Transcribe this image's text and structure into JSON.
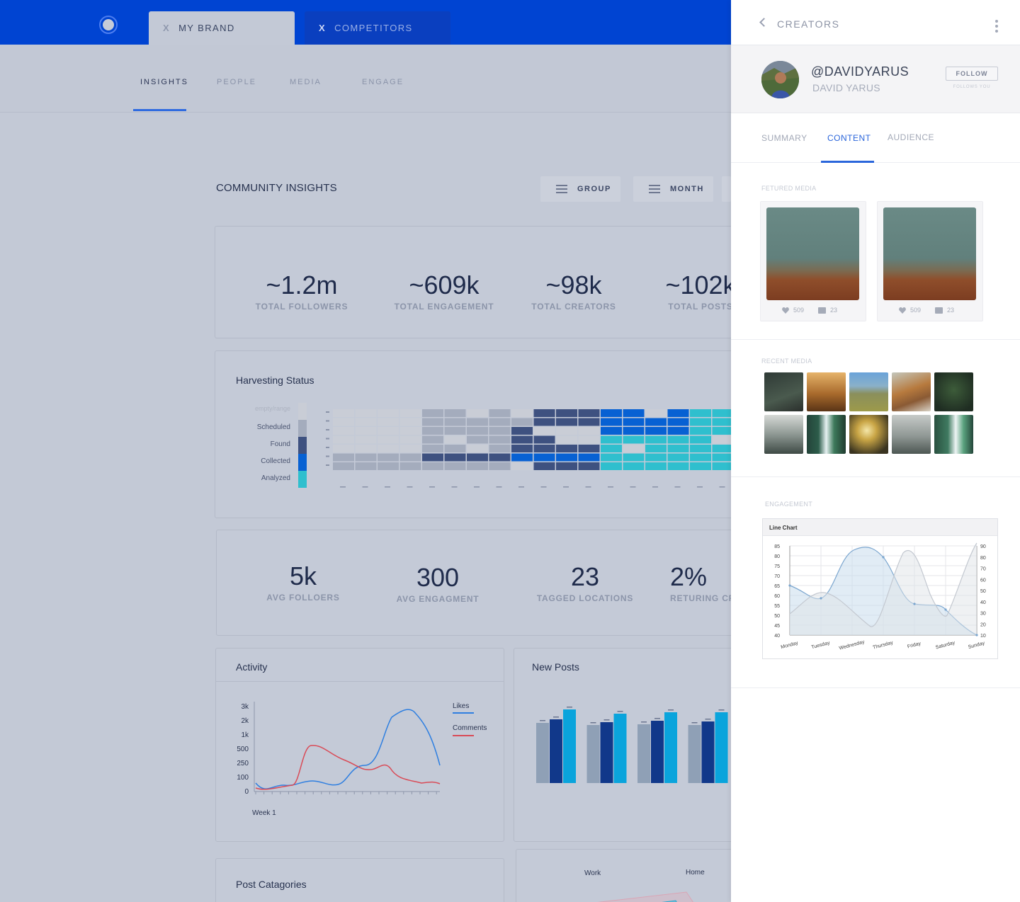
{
  "topbar": {
    "tabs": [
      {
        "label": "MY BRAND",
        "close": "X"
      },
      {
        "label": "COMPETITORS",
        "close": "X"
      }
    ]
  },
  "subnav": [
    "INSIGHTS",
    "PEOPLE",
    "MEDIA",
    "ENGAGE"
  ],
  "community": {
    "title": "COMMUNITY INSIGHTS",
    "filters": [
      "GROUP",
      "MONTH"
    ]
  },
  "totals": [
    {
      "value": "~1.2m",
      "label": "TOTAL FOLLOWERS"
    },
    {
      "value": "~609k",
      "label": "TOTAL ENGAGEMENT"
    },
    {
      "value": "~98k",
      "label": "TOTAL CREATORS"
    },
    {
      "value": "~102k",
      "label": "TOTAL POSTS"
    }
  ],
  "harvesting": {
    "title": "Harvesting Status",
    "legend": [
      "empty/range",
      "Scheduled",
      "Found",
      "Collected",
      "Analyzed"
    ],
    "colors": [
      "#c9cdd6",
      "#a4acbd",
      "#3e5180",
      "#0761d3",
      "#2fbfce"
    ]
  },
  "averages": [
    {
      "value": "5k",
      "label": "AVG FOLLOERS"
    },
    {
      "value": "300",
      "label": "AVG ENGAGMENT"
    },
    {
      "value": "23",
      "label": "TAGGED LOCATIONS"
    },
    {
      "value": "2%",
      "label": "RETURING CREATORS"
    }
  ],
  "activity": {
    "title": "Activity",
    "yticks": [
      "3k",
      "2k",
      "1k",
      "500",
      "250",
      "100",
      "0"
    ],
    "xlabel": "Week 1",
    "legend": [
      {
        "name": "Likes",
        "color": "#2f7fe0"
      },
      {
        "name": "Comments",
        "color": "#d94b57"
      }
    ]
  },
  "new_posts": {
    "title": "New Posts",
    "colors": [
      "#8fa0b6",
      "#11388a",
      "#0aa4dc"
    ]
  },
  "post_categories": {
    "title": "Post Catagories"
  },
  "radar": {
    "labels": [
      "Work",
      "Home"
    ]
  },
  "panel": {
    "title": "CREATORS",
    "handle": "@DAVIDYARUS",
    "name": "DAVID YARUS",
    "follow": "FOLLOW",
    "follows_you": "FOLLOWS YOU",
    "tabs": [
      "SUMMARY",
      "CONTENT",
      "AUDIENCE"
    ],
    "featured_label": "FETURED MEDIA",
    "featured": [
      {
        "likes": "509",
        "comments": "23"
      },
      {
        "likes": "509",
        "comments": "23"
      }
    ],
    "recent_label": "RECENT MEDIA",
    "engagement_label": "ENGAGEMENT",
    "line_chart": {
      "title": "Line Chart",
      "days": [
        "Monday",
        "Tuesday",
        "Wednesday",
        "Thursday",
        "Friday",
        "Saturday",
        "Sunday"
      ],
      "left_ticks": [
        "85",
        "80",
        "75",
        "70",
        "65",
        "60",
        "55",
        "50",
        "45",
        "40"
      ],
      "right_ticks": [
        "90",
        "80",
        "70",
        "60",
        "50",
        "40",
        "30",
        "20",
        "10"
      ]
    }
  }
}
